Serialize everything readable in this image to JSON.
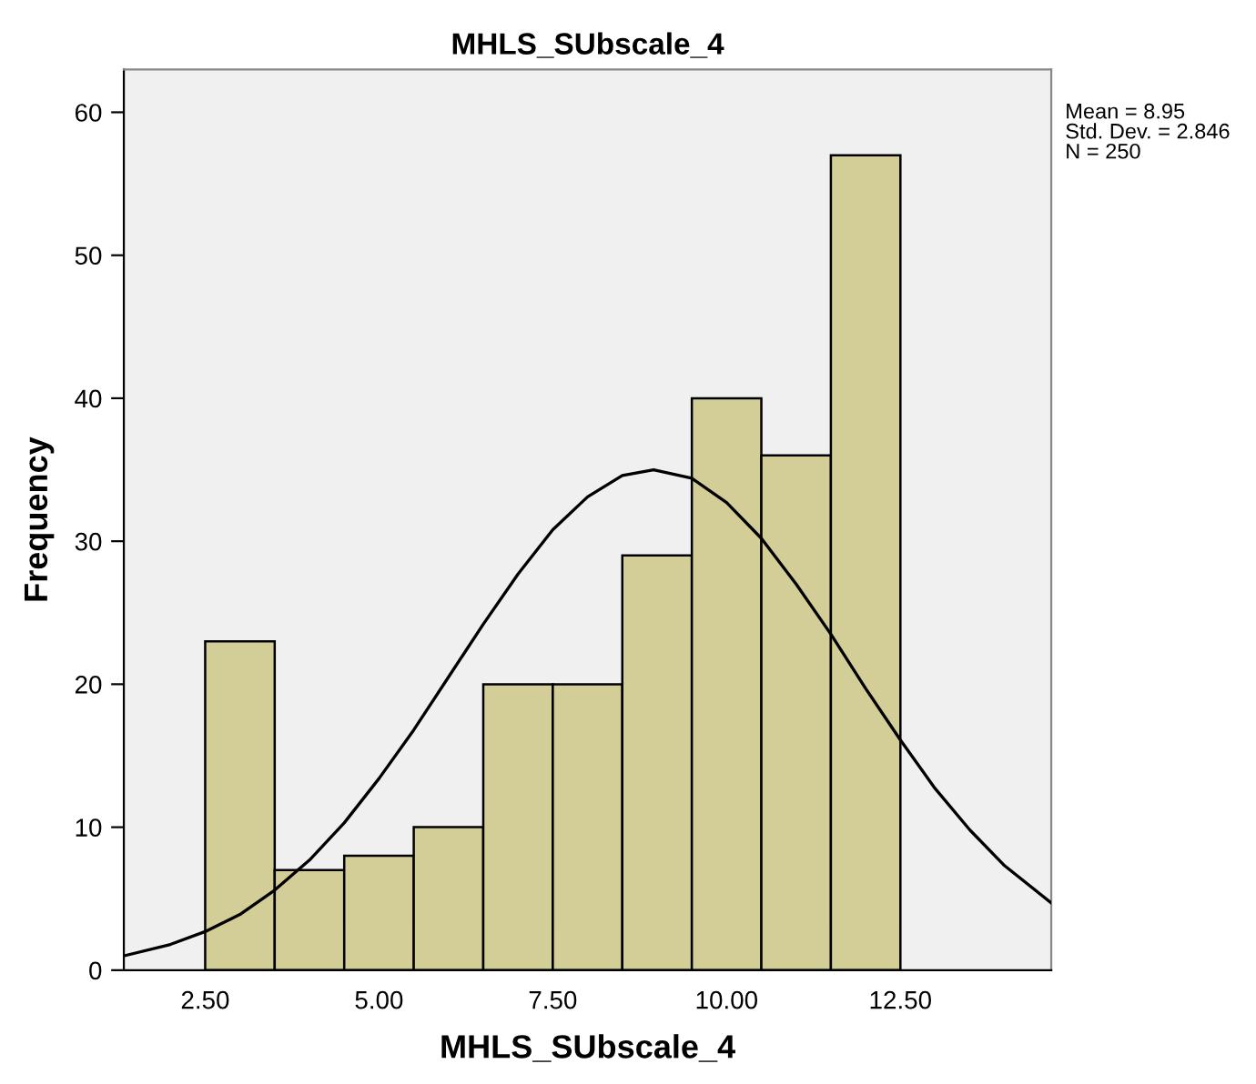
{
  "chart_data": {
    "type": "histogram",
    "title": "MHLS_SUbscale_4",
    "xlabel": "MHLS_SUbscale_4",
    "ylabel": "Frequency",
    "bins": [
      2.5,
      3.5,
      4.5,
      5.5,
      6.5,
      7.5,
      8.5,
      9.5,
      10.5,
      11.5,
      12.5
    ],
    "series": [
      {
        "color": "#d3ce97",
        "values": [
          23,
          7,
          8,
          10,
          20,
          20,
          29,
          40,
          36,
          57
        ]
      },
      {
        "type": "line",
        "color": "#000000",
        "x": [
          1.33,
          2,
          2.5,
          3,
          3.5,
          4,
          4.5,
          5,
          5.5,
          6,
          6.5,
          7,
          7.5,
          8,
          8.5,
          8.95,
          9.5,
          10,
          10.5,
          11,
          11.5,
          12,
          12.5,
          13,
          13.5,
          14,
          14.67
        ],
        "values": [
          1.0,
          1.8,
          2.7,
          3.9,
          5.6,
          7.7,
          10.3,
          13.4,
          16.8,
          20.5,
          24.2,
          27.7,
          30.8,
          33.1,
          34.6,
          35.0,
          34.4,
          32.7,
          30.2,
          27.0,
          23.5,
          19.7,
          16.1,
          12.7,
          9.8,
          7.3,
          4.7
        ]
      }
    ],
    "xlim": [
      1.33,
      14.67
    ],
    "ylim": [
      0,
      63
    ],
    "xticks": [
      {
        "value": 2.5,
        "label": "2.50"
      },
      {
        "value": 5,
        "label": "5.00"
      },
      {
        "value": 7.5,
        "label": "7.50"
      },
      {
        "value": 10,
        "label": "10.00"
      },
      {
        "value": 12.5,
        "label": "12.50"
      }
    ],
    "yticks": [
      0,
      10,
      20,
      30,
      40,
      50,
      60
    ],
    "grid": false,
    "legend": false,
    "annotations": [
      "Mean = 8.95",
      "Std. Dev. = 2.846",
      "N = 250"
    ]
  }
}
